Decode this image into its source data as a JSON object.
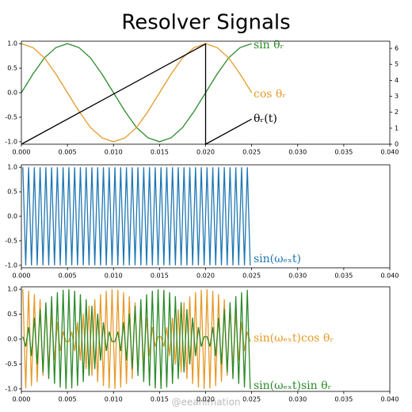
{
  "title": "Resolver Signals",
  "watermark": "@eeanimation",
  "chart_data": [
    {
      "type": "line",
      "xlim": [
        0,
        0.04
      ],
      "ylim": [
        -1.05,
        1.05
      ],
      "y2lim": [
        0,
        6.45
      ],
      "xticks": [
        {
          "value": 0,
          "label": "0.000"
        },
        {
          "value": 0.005,
          "label": "0.005"
        },
        {
          "value": 0.01,
          "label": "0.010"
        },
        {
          "value": 0.015,
          "label": "0.015"
        },
        {
          "value": 0.02,
          "label": "0.020"
        },
        {
          "value": 0.025,
          "label": "0.025"
        },
        {
          "value": 0.03,
          "label": "0.030"
        },
        {
          "value": 0.035,
          "label": "0.035"
        },
        {
          "value": 0.04,
          "label": "0.040"
        }
      ],
      "yticks": [
        {
          "value": -1,
          "label": "-1.0"
        },
        {
          "value": -0.5,
          "label": "-0.5"
        },
        {
          "value": 0,
          "label": "0.0"
        },
        {
          "value": 0.5,
          "label": "0.5"
        },
        {
          "value": 1,
          "label": "1.0"
        }
      ],
      "y2ticks": [
        0,
        1,
        2,
        3,
        4,
        5,
        6
      ],
      "x": [
        0,
        0.00125,
        0.0025,
        0.00375,
        0.005,
        0.00625,
        0.0075,
        0.00875,
        0.01,
        0.01125,
        0.0125,
        0.01375,
        0.015,
        0.01625,
        0.0175,
        0.01875,
        0.02,
        0.02125,
        0.0225,
        0.02375,
        0.025
      ],
      "series": [
        {
          "name": "sin θᵣ",
          "color": "#2a8a2a",
          "values": [
            0,
            0.38,
            0.71,
            0.92,
            1,
            0.92,
            0.71,
            0.38,
            0,
            -0.38,
            -0.71,
            -0.92,
            -1,
            -0.92,
            -0.71,
            -0.38,
            0,
            0.38,
            0.71,
            0.92,
            1
          ]
        },
        {
          "name": "cos θᵣ",
          "color": "#e69a28",
          "values": [
            1,
            0.92,
            0.71,
            0.38,
            0,
            -0.38,
            -0.71,
            -0.92,
            -1,
            -0.92,
            -0.71,
            -0.38,
            0,
            0.38,
            0.71,
            0.92,
            1,
            0.92,
            0.71,
            0.38,
            0
          ]
        },
        {
          "name": "θᵣ(t)",
          "color": "#000000",
          "axis": "y2",
          "x": [
            0,
            0.02,
            0.02,
            0.025
          ],
          "values": [
            0,
            6.28,
            0,
            1.57
          ]
        }
      ]
    },
    {
      "type": "line",
      "xlim": [
        0,
        0.04
      ],
      "ylim": [
        -1.05,
        1.05
      ],
      "xticks": [
        {
          "value": 0,
          "label": "0.000"
        },
        {
          "value": 0.005,
          "label": "0.005"
        },
        {
          "value": 0.01,
          "label": "0.010"
        },
        {
          "value": 0.015,
          "label": "0.015"
        },
        {
          "value": 0.02,
          "label": "0.020"
        },
        {
          "value": 0.025,
          "label": "0.025"
        },
        {
          "value": 0.03,
          "label": "0.030"
        },
        {
          "value": 0.035,
          "label": "0.035"
        },
        {
          "value": 0.04,
          "label": "0.040"
        }
      ],
      "yticks": [
        {
          "value": -1,
          "label": "-1.0"
        },
        {
          "value": -0.5,
          "label": "-0.5"
        },
        {
          "value": 0,
          "label": "0.0"
        },
        {
          "value": 0.5,
          "label": "0.5"
        },
        {
          "value": 1,
          "label": "1.0"
        }
      ],
      "x": [
        0.00015625,
        0.00046875,
        0.00078125,
        0.00109375,
        0.00140625,
        0.00171875,
        0.00203125,
        0.00234375,
        0.00265625,
        0.00296875,
        0.00328125,
        0.00359375,
        0.00390625,
        0.00421875,
        0.00453125,
        0.00484375,
        0.00515625,
        0.00546875,
        0.00578125,
        0.00609375,
        0.00640625,
        0.00671875,
        0.00703125,
        0.00734375,
        0.00765625,
        0.00796875,
        0.00828125,
        0.00859375,
        0.00890625,
        0.00921875,
        0.00953125,
        0.00984375,
        0.01015625,
        0.01046875,
        0.01078125,
        0.01109375,
        0.01140625,
        0.01171875,
        0.01203125,
        0.01234375,
        0.01265625,
        0.01296875,
        0.01328125,
        0.01359375,
        0.01390625,
        0.01421875,
        0.01453125,
        0.01484375,
        0.01515625,
        0.01546875,
        0.01578125,
        0.01609375,
        0.01640625,
        0.01671875,
        0.01703125,
        0.01734375,
        0.01765625,
        0.01796875,
        0.01828125,
        0.01859375,
        0.01890625,
        0.01921875,
        0.01953125,
        0.01984375,
        0.02015625,
        0.02046875,
        0.02078125,
        0.02109375,
        0.02140625,
        0.02171875,
        0.02203125,
        0.02234375,
        0.02265625,
        0.02296875,
        0.02328125,
        0.02359375,
        0.02390625,
        0.02421875,
        0.02453125,
        0.02484375
      ],
      "series": [
        {
          "name": "sin(ωₑₓt)",
          "color": "#1f77b4",
          "values": [
            1,
            -1,
            1,
            -1,
            1,
            -1,
            1,
            -1,
            1,
            -1,
            1,
            -1,
            1,
            -1,
            1,
            -1,
            1,
            -1,
            1,
            -1,
            1,
            -1,
            1,
            -1,
            1,
            -1,
            1,
            -1,
            1,
            -1,
            1,
            -1,
            1,
            -1,
            1,
            -1,
            1,
            -1,
            1,
            -1,
            1,
            -1,
            1,
            -1,
            1,
            -1,
            1,
            -1,
            1,
            -1,
            1,
            -1,
            1,
            -1,
            1,
            -1,
            1,
            -1,
            1,
            -1,
            1,
            -1,
            1,
            -1,
            1,
            -1,
            1,
            -1,
            1,
            -1,
            1,
            -1,
            1,
            -1,
            1,
            -1,
            1,
            -1,
            1,
            -1
          ]
        }
      ]
    },
    {
      "type": "line",
      "xlim": [
        0,
        0.04
      ],
      "ylim": [
        -1.05,
        1.05
      ],
      "xticks": [
        {
          "value": 0,
          "label": "0.000"
        },
        {
          "value": 0.005,
          "label": "0.005"
        },
        {
          "value": 0.01,
          "label": "0.010"
        },
        {
          "value": 0.015,
          "label": "0.015"
        },
        {
          "value": 0.02,
          "label": "0.020"
        },
        {
          "value": 0.025,
          "label": "0.025"
        },
        {
          "value": 0.03,
          "label": "0.030"
        },
        {
          "value": 0.035,
          "label": "0.035"
        },
        {
          "value": 0.04,
          "label": "0.040"
        }
      ],
      "yticks": [
        {
          "value": -1,
          "label": "-1.0"
        },
        {
          "value": -0.5,
          "label": "-0.5"
        },
        {
          "value": 0,
          "label": "0.0"
        },
        {
          "value": 0.5,
          "label": "0.5"
        },
        {
          "value": 1,
          "label": "1.0"
        }
      ],
      "x": [
        0.00015625,
        0.00046875,
        0.00078125,
        0.00109375,
        0.00140625,
        0.00171875,
        0.00203125,
        0.00234375,
        0.00265625,
        0.00296875,
        0.00328125,
        0.00359375,
        0.00390625,
        0.00421875,
        0.00453125,
        0.00484375,
        0.00515625,
        0.00546875,
        0.00578125,
        0.00609375,
        0.00640625,
        0.00671875,
        0.00703125,
        0.00734375,
        0.00765625,
        0.00796875,
        0.00828125,
        0.00859375,
        0.00890625,
        0.00921875,
        0.00953125,
        0.00984375,
        0.01015625,
        0.01046875,
        0.01078125,
        0.01109375,
        0.01140625,
        0.01171875,
        0.01203125,
        0.01234375,
        0.01265625,
        0.01296875,
        0.01328125,
        0.01359375,
        0.01390625,
        0.01421875,
        0.01453125,
        0.01484375,
        0.01515625,
        0.01546875,
        0.01578125,
        0.01609375,
        0.01640625,
        0.01671875,
        0.01703125,
        0.01734375,
        0.01765625,
        0.01796875,
        0.01828125,
        0.01859375,
        0.01890625,
        0.01921875,
        0.01953125,
        0.01984375,
        0.02015625,
        0.02046875,
        0.02078125,
        0.02109375,
        0.02140625,
        0.02171875,
        0.02203125,
        0.02234375,
        0.02265625,
        0.02296875,
        0.02328125,
        0.02359375,
        0.02390625,
        0.02421875,
        0.02453125,
        0.02484375
      ],
      "series": [
        {
          "name": "sin(ωₑₓt)cos θᵣ",
          "color": "#e69a28",
          "values": [
            1,
            -0.99,
            0.97,
            -0.94,
            0.9,
            -0.86,
            0.8,
            -0.74,
            0.67,
            -0.6,
            0.51,
            -0.43,
            0.34,
            -0.24,
            0.15,
            -0.05,
            -0.05,
            0.15,
            -0.24,
            0.34,
            -0.43,
            0.51,
            -0.6,
            0.67,
            -0.74,
            0.8,
            -0.86,
            0.9,
            -0.94,
            0.97,
            -0.99,
            1,
            -1,
            0.99,
            -0.97,
            0.94,
            -0.9,
            0.86,
            -0.8,
            0.74,
            -0.67,
            0.6,
            -0.51,
            0.43,
            -0.34,
            0.24,
            -0.15,
            0.05,
            0.05,
            -0.15,
            0.24,
            -0.34,
            0.43,
            -0.51,
            0.6,
            -0.67,
            0.74,
            -0.8,
            0.86,
            -0.9,
            0.94,
            -0.97,
            0.99,
            -1,
            1,
            -0.99,
            0.97,
            -0.94,
            0.9,
            -0.86,
            0.8,
            -0.74,
            0.67,
            -0.6,
            0.51,
            -0.43,
            0.34,
            -0.24,
            0.15,
            -0.05
          ]
        },
        {
          "name": "sin(ωₑₓt)sin θᵣ",
          "color": "#2a8a2a",
          "values": [
            0.05,
            -0.15,
            0.24,
            -0.34,
            0.43,
            -0.51,
            0.6,
            -0.67,
            0.74,
            -0.8,
            0.86,
            -0.9,
            0.94,
            -0.97,
            0.99,
            -1,
            1,
            -0.99,
            0.97,
            -0.94,
            0.9,
            -0.86,
            0.8,
            -0.74,
            0.67,
            -0.6,
            0.51,
            -0.43,
            0.34,
            -0.24,
            0.15,
            -0.05,
            -0.05,
            0.15,
            -0.24,
            0.34,
            -0.43,
            0.51,
            -0.6,
            0.67,
            -0.74,
            0.8,
            -0.86,
            0.9,
            -0.94,
            0.97,
            -0.99,
            1,
            -1,
            0.99,
            -0.97,
            0.94,
            -0.9,
            0.86,
            -0.8,
            0.74,
            -0.67,
            0.6,
            -0.51,
            0.43,
            -0.34,
            0.24,
            -0.15,
            0.05,
            0.05,
            -0.15,
            0.24,
            -0.34,
            0.43,
            -0.51,
            0.6,
            -0.67,
            0.74,
            -0.8,
            0.86,
            -0.9,
            0.94,
            -0.97,
            0.99,
            -1
          ]
        }
      ]
    }
  ]
}
